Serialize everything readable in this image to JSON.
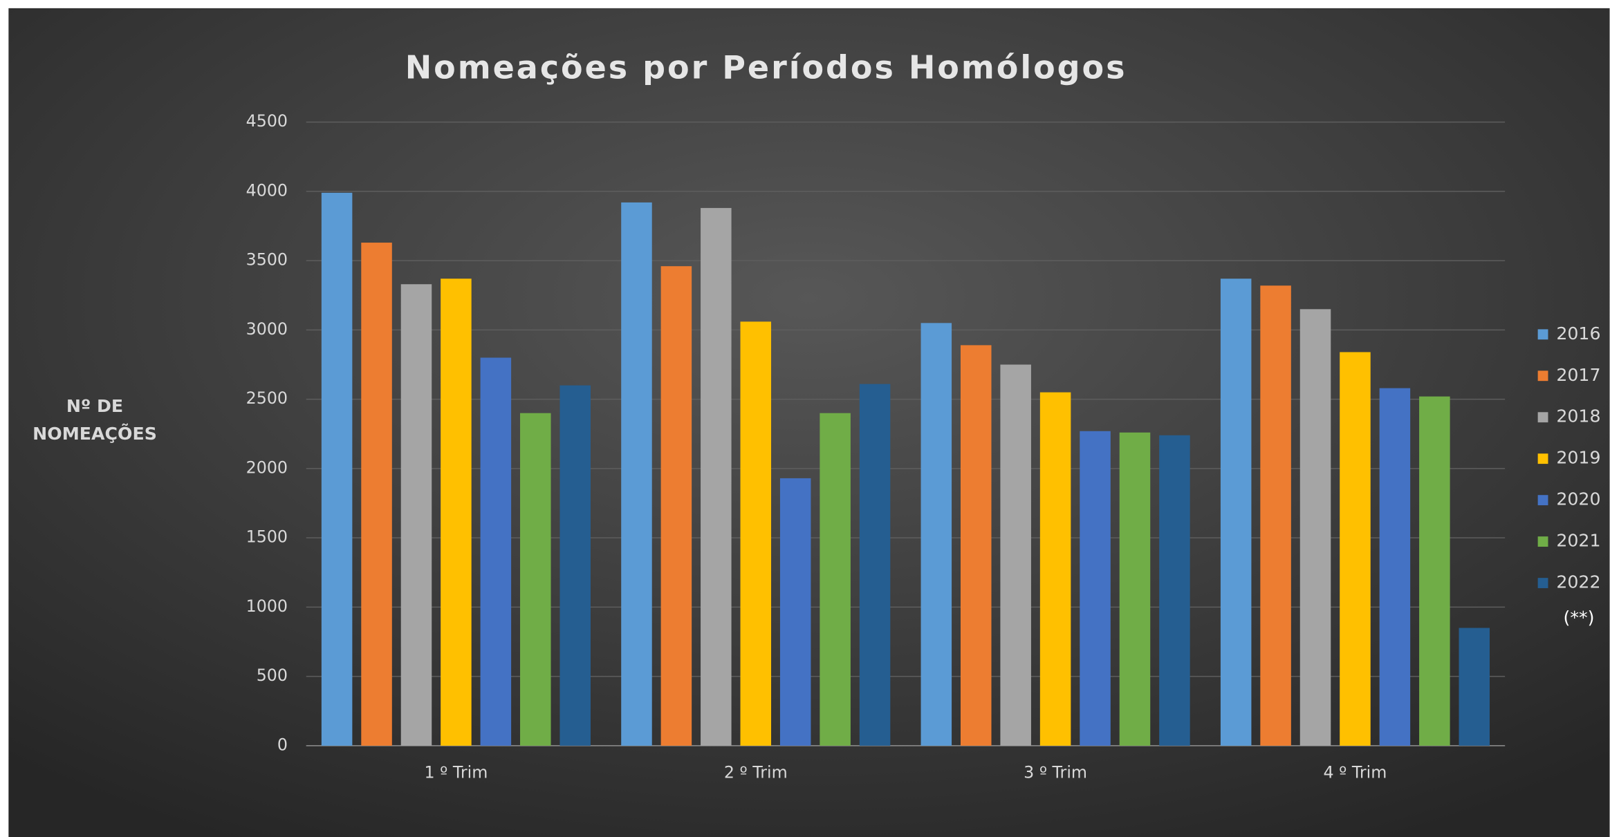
{
  "chart_data": {
    "type": "bar",
    "title": "Nomeações por Períodos Homólogos",
    "y_label": [
      "Nº DE",
      "NOMEAÇÕES"
    ],
    "annotation": "(**)",
    "categories": [
      "1 º Trim",
      "2 º Trim",
      "3 º Trim",
      "4 º Trim"
    ],
    "series": [
      {
        "name": "2016",
        "color": "#5b9bd5",
        "values": [
          3990,
          3920,
          3050,
          3370
        ]
      },
      {
        "name": "2017",
        "color": "#ed7d31",
        "values": [
          3630,
          3460,
          2890,
          3320
        ]
      },
      {
        "name": "2018",
        "color": "#a5a5a5",
        "values": [
          3330,
          3880,
          2750,
          3150
        ]
      },
      {
        "name": "2019",
        "color": "#ffc000",
        "values": [
          3370,
          3060,
          2550,
          2840
        ]
      },
      {
        "name": "2020",
        "color": "#4472c4",
        "values": [
          2800,
          1930,
          2270,
          2580
        ]
      },
      {
        "name": "2021",
        "color": "#70ad47",
        "values": [
          2400,
          2400,
          2260,
          2520
        ]
      },
      {
        "name": "2022",
        "color": "#255e91",
        "values": [
          2600,
          2610,
          2240,
          850
        ]
      }
    ],
    "ylim": [
      0,
      4500
    ],
    "yticks": [
      0,
      500,
      1000,
      1500,
      2000,
      2500,
      3000,
      3500,
      4000,
      4500
    ],
    "grid": true,
    "legend": "right"
  }
}
